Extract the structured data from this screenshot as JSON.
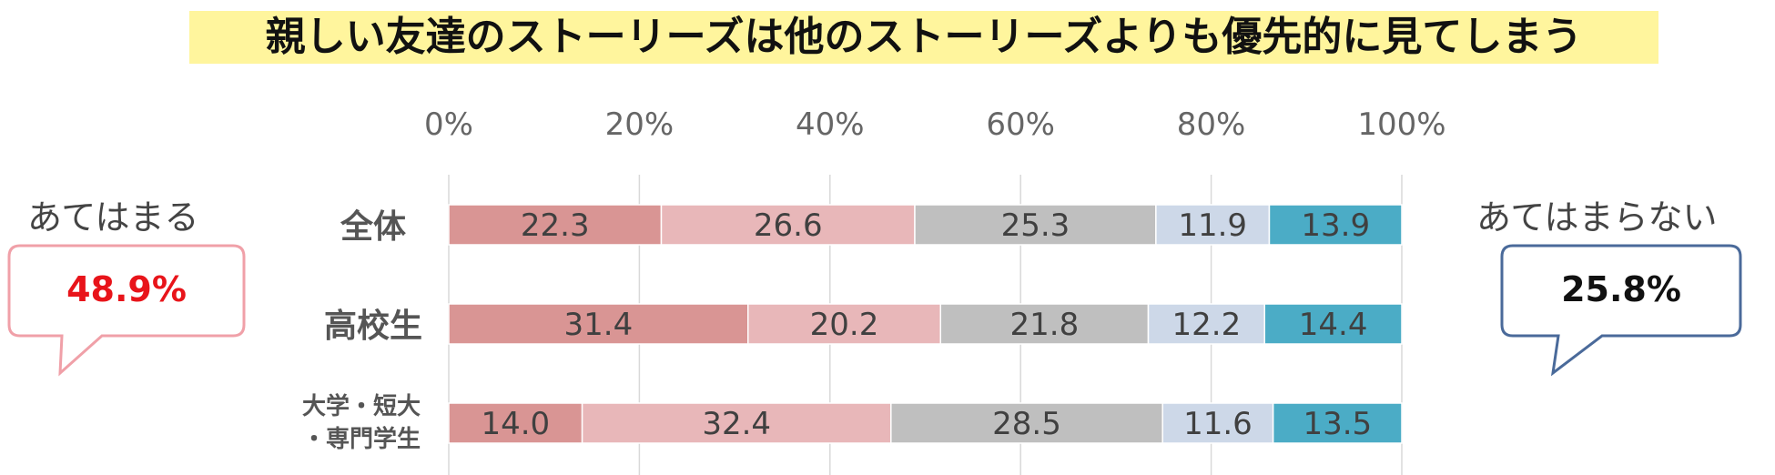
{
  "title": "親しい友達のストーリーズは他のストーリーズよりも優先的に見てしまう",
  "left_callout": {
    "label": "あてはまる",
    "value": "48.9%",
    "color": "#e8141a",
    "border": "#f0a0a8"
  },
  "right_callout": {
    "label": "あてはまらない",
    "value": "25.8%",
    "color": "#111111",
    "border": "#4a6a9a"
  },
  "chart_data": {
    "type": "bar",
    "orientation": "horizontal",
    "stacked": "percent",
    "xlim": [
      0,
      100
    ],
    "x_ticks": [
      "0%",
      "20%",
      "40%",
      "60%",
      "80%",
      "100%"
    ],
    "grid": true,
    "categories": [
      {
        "lines": [
          "全体"
        ]
      },
      {
        "lines": [
          "高校生"
        ]
      },
      {
        "lines": [
          "大学・短大",
          "・専門学生"
        ]
      }
    ],
    "series": [
      {
        "values": [
          22.3,
          31.4,
          14.0
        ],
        "color": "#d99594"
      },
      {
        "values": [
          26.6,
          20.2,
          32.4
        ],
        "color": "#e8b7b9"
      },
      {
        "values": [
          25.3,
          21.8,
          28.5
        ],
        "color": "#bfbfbf"
      },
      {
        "values": [
          11.9,
          12.2,
          11.6
        ],
        "color": "#cdd8e8"
      },
      {
        "values": [
          13.9,
          14.4,
          13.5
        ],
        "color": "#4bacc6"
      }
    ]
  }
}
